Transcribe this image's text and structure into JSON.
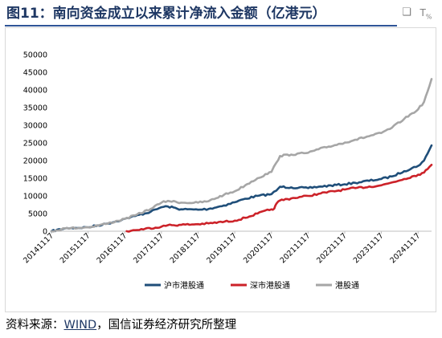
{
  "title": "图11：南向资金成立以来累计净流入金额（亿港元）",
  "source": {
    "prefix": "资料来源：",
    "highlight": "WIND",
    "suffix": "，国信证券经济研究所整理"
  },
  "toolbar": {
    "copy_icon": "copy-icon",
    "text_icon": "text-recognition-icon"
  },
  "chart_data": {
    "type": "line",
    "title": "",
    "xlabel": "",
    "ylabel": "",
    "grid": false,
    "legend_position": "bottom",
    "ylim": [
      0,
      50000
    ],
    "yticks": [
      0,
      5000,
      10000,
      15000,
      20000,
      25000,
      30000,
      35000,
      40000,
      45000,
      50000
    ],
    "xlim": [
      "2014-11-17",
      "2025-03-31"
    ],
    "xticks": [
      "20141117",
      "20151117",
      "20161117",
      "20171117",
      "20181117",
      "20191117",
      "20201117",
      "20211117",
      "20221117",
      "20231117",
      "20241117"
    ],
    "series": [
      {
        "name": "沪市港股通",
        "color": "#1f4e79",
        "points": [
          [
            "2014-11-17",
            0
          ],
          [
            "2015-04-01",
            800
          ],
          [
            "2015-06-01",
            900
          ],
          [
            "2015-11-17",
            1100
          ],
          [
            "2016-06-01",
            2200
          ],
          [
            "2016-11-17",
            3500
          ],
          [
            "2017-03-01",
            4300
          ],
          [
            "2017-08-01",
            5500
          ],
          [
            "2017-11-17",
            6800
          ],
          [
            "2018-01-20",
            7000
          ],
          [
            "2018-06-01",
            6200
          ],
          [
            "2018-11-17",
            6100
          ],
          [
            "2019-03-01",
            6300
          ],
          [
            "2019-08-01",
            7300
          ],
          [
            "2019-11-17",
            8200
          ],
          [
            "2020-03-01",
            9200
          ],
          [
            "2020-07-01",
            10000
          ],
          [
            "2020-11-17",
            10500
          ],
          [
            "2021-01-05",
            11500
          ],
          [
            "2021-02-10",
            12600
          ],
          [
            "2021-06-01",
            12400
          ],
          [
            "2021-11-17",
            12200
          ],
          [
            "2022-03-01",
            12600
          ],
          [
            "2022-11-17",
            13300
          ],
          [
            "2023-03-01",
            13700
          ],
          [
            "2023-11-17",
            14800
          ],
          [
            "2024-03-01",
            15500
          ],
          [
            "2024-07-01",
            17000
          ],
          [
            "2024-11-17",
            18500
          ],
          [
            "2025-01-15",
            20000
          ],
          [
            "2025-02-20",
            22000
          ],
          [
            "2025-03-31",
            24300
          ]
        ]
      },
      {
        "name": "深市港股通",
        "color": "#cc2229",
        "points": [
          [
            "2016-12-05",
            0
          ],
          [
            "2017-03-01",
            300
          ],
          [
            "2017-11-17",
            1300
          ],
          [
            "2018-01-20",
            1700
          ],
          [
            "2018-06-01",
            1800
          ],
          [
            "2018-11-17",
            2000
          ],
          [
            "2019-03-01",
            2200
          ],
          [
            "2019-11-17",
            3000
          ],
          [
            "2020-03-01",
            3800
          ],
          [
            "2020-07-01",
            5000
          ],
          [
            "2020-11-17",
            6200
          ],
          [
            "2020-12-15",
            6400
          ],
          [
            "2021-01-05",
            7800
          ],
          [
            "2021-02-10",
            8700
          ],
          [
            "2021-06-01",
            9300
          ],
          [
            "2021-11-17",
            10000
          ],
          [
            "2022-03-01",
            10600
          ],
          [
            "2022-11-17",
            11800
          ],
          [
            "2023-03-01",
            12200
          ],
          [
            "2023-11-17",
            13000
          ],
          [
            "2024-03-01",
            13800
          ],
          [
            "2024-07-01",
            14800
          ],
          [
            "2024-11-17",
            16000
          ],
          [
            "2025-01-15",
            16600
          ],
          [
            "2025-02-20",
            17600
          ],
          [
            "2025-03-31",
            18800
          ]
        ]
      },
      {
        "name": "港股通",
        "color": "#a6a6a6",
        "points": [
          [
            "2014-11-17",
            0
          ],
          [
            "2015-04-01",
            800
          ],
          [
            "2015-06-01",
            900
          ],
          [
            "2015-11-17",
            1100
          ],
          [
            "2016-06-01",
            2200
          ],
          [
            "2016-11-17",
            3500
          ],
          [
            "2017-03-01",
            4500
          ],
          [
            "2017-08-01",
            6300
          ],
          [
            "2017-11-17",
            8100
          ],
          [
            "2018-01-20",
            8600
          ],
          [
            "2018-06-01",
            8100
          ],
          [
            "2018-11-17",
            8100
          ],
          [
            "2019-03-01",
            8500
          ],
          [
            "2019-08-01",
            10300
          ],
          [
            "2019-11-17",
            11300
          ],
          [
            "2020-03-01",
            13000
          ],
          [
            "2020-07-01",
            15000
          ],
          [
            "2020-11-17",
            16800
          ],
          [
            "2021-01-05",
            19400
          ],
          [
            "2021-02-10",
            21300
          ],
          [
            "2021-06-01",
            21700
          ],
          [
            "2021-11-17",
            22200
          ],
          [
            "2022-03-01",
            23200
          ],
          [
            "2022-11-17",
            25100
          ],
          [
            "2023-03-01",
            25900
          ],
          [
            "2023-11-17",
            27800
          ],
          [
            "2024-03-01",
            29300
          ],
          [
            "2024-07-01",
            31800
          ],
          [
            "2024-11-17",
            34500
          ],
          [
            "2025-01-15",
            36600
          ],
          [
            "2025-02-20",
            39600
          ],
          [
            "2025-03-31",
            43100
          ]
        ]
      }
    ]
  }
}
